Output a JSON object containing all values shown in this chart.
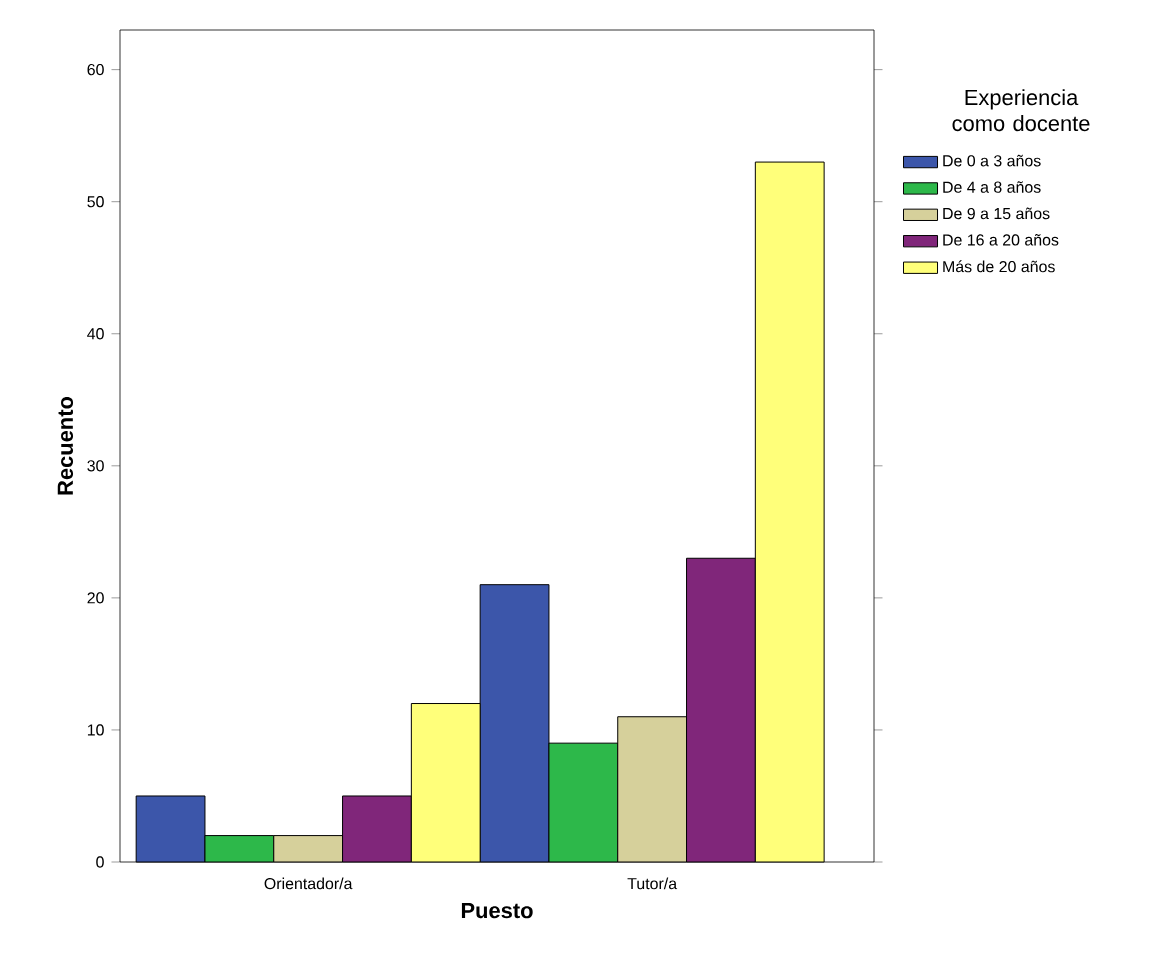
{
  "chart_data": {
    "type": "bar",
    "xlabel": "Puesto",
    "ylabel": "Recuento",
    "legend_title": "Experiencia como docente",
    "categories": [
      "Orientador/a",
      "Tutor/a"
    ],
    "series": [
      {
        "name": "De 0 a 3 años",
        "color": "#3c56aa",
        "values": [
          5,
          21
        ]
      },
      {
        "name": "De 4 a 8 años",
        "color": "#2db84a",
        "values": [
          2,
          9
        ]
      },
      {
        "name": "De 9 a 15 años",
        "color": "#d6d09b",
        "values": [
          2,
          11
        ]
      },
      {
        "name": "De 16 a 20 años",
        "color": "#80267a",
        "values": [
          5,
          23
        ]
      },
      {
        "name": "Más de 20 años",
        "color": "#ffff7a",
        "values": [
          12,
          53
        ]
      }
    ],
    "ylim": [
      0,
      63
    ],
    "yticks": [
      0,
      10,
      20,
      30,
      40,
      50,
      60
    ],
    "legend": "right",
    "grid": false
  }
}
